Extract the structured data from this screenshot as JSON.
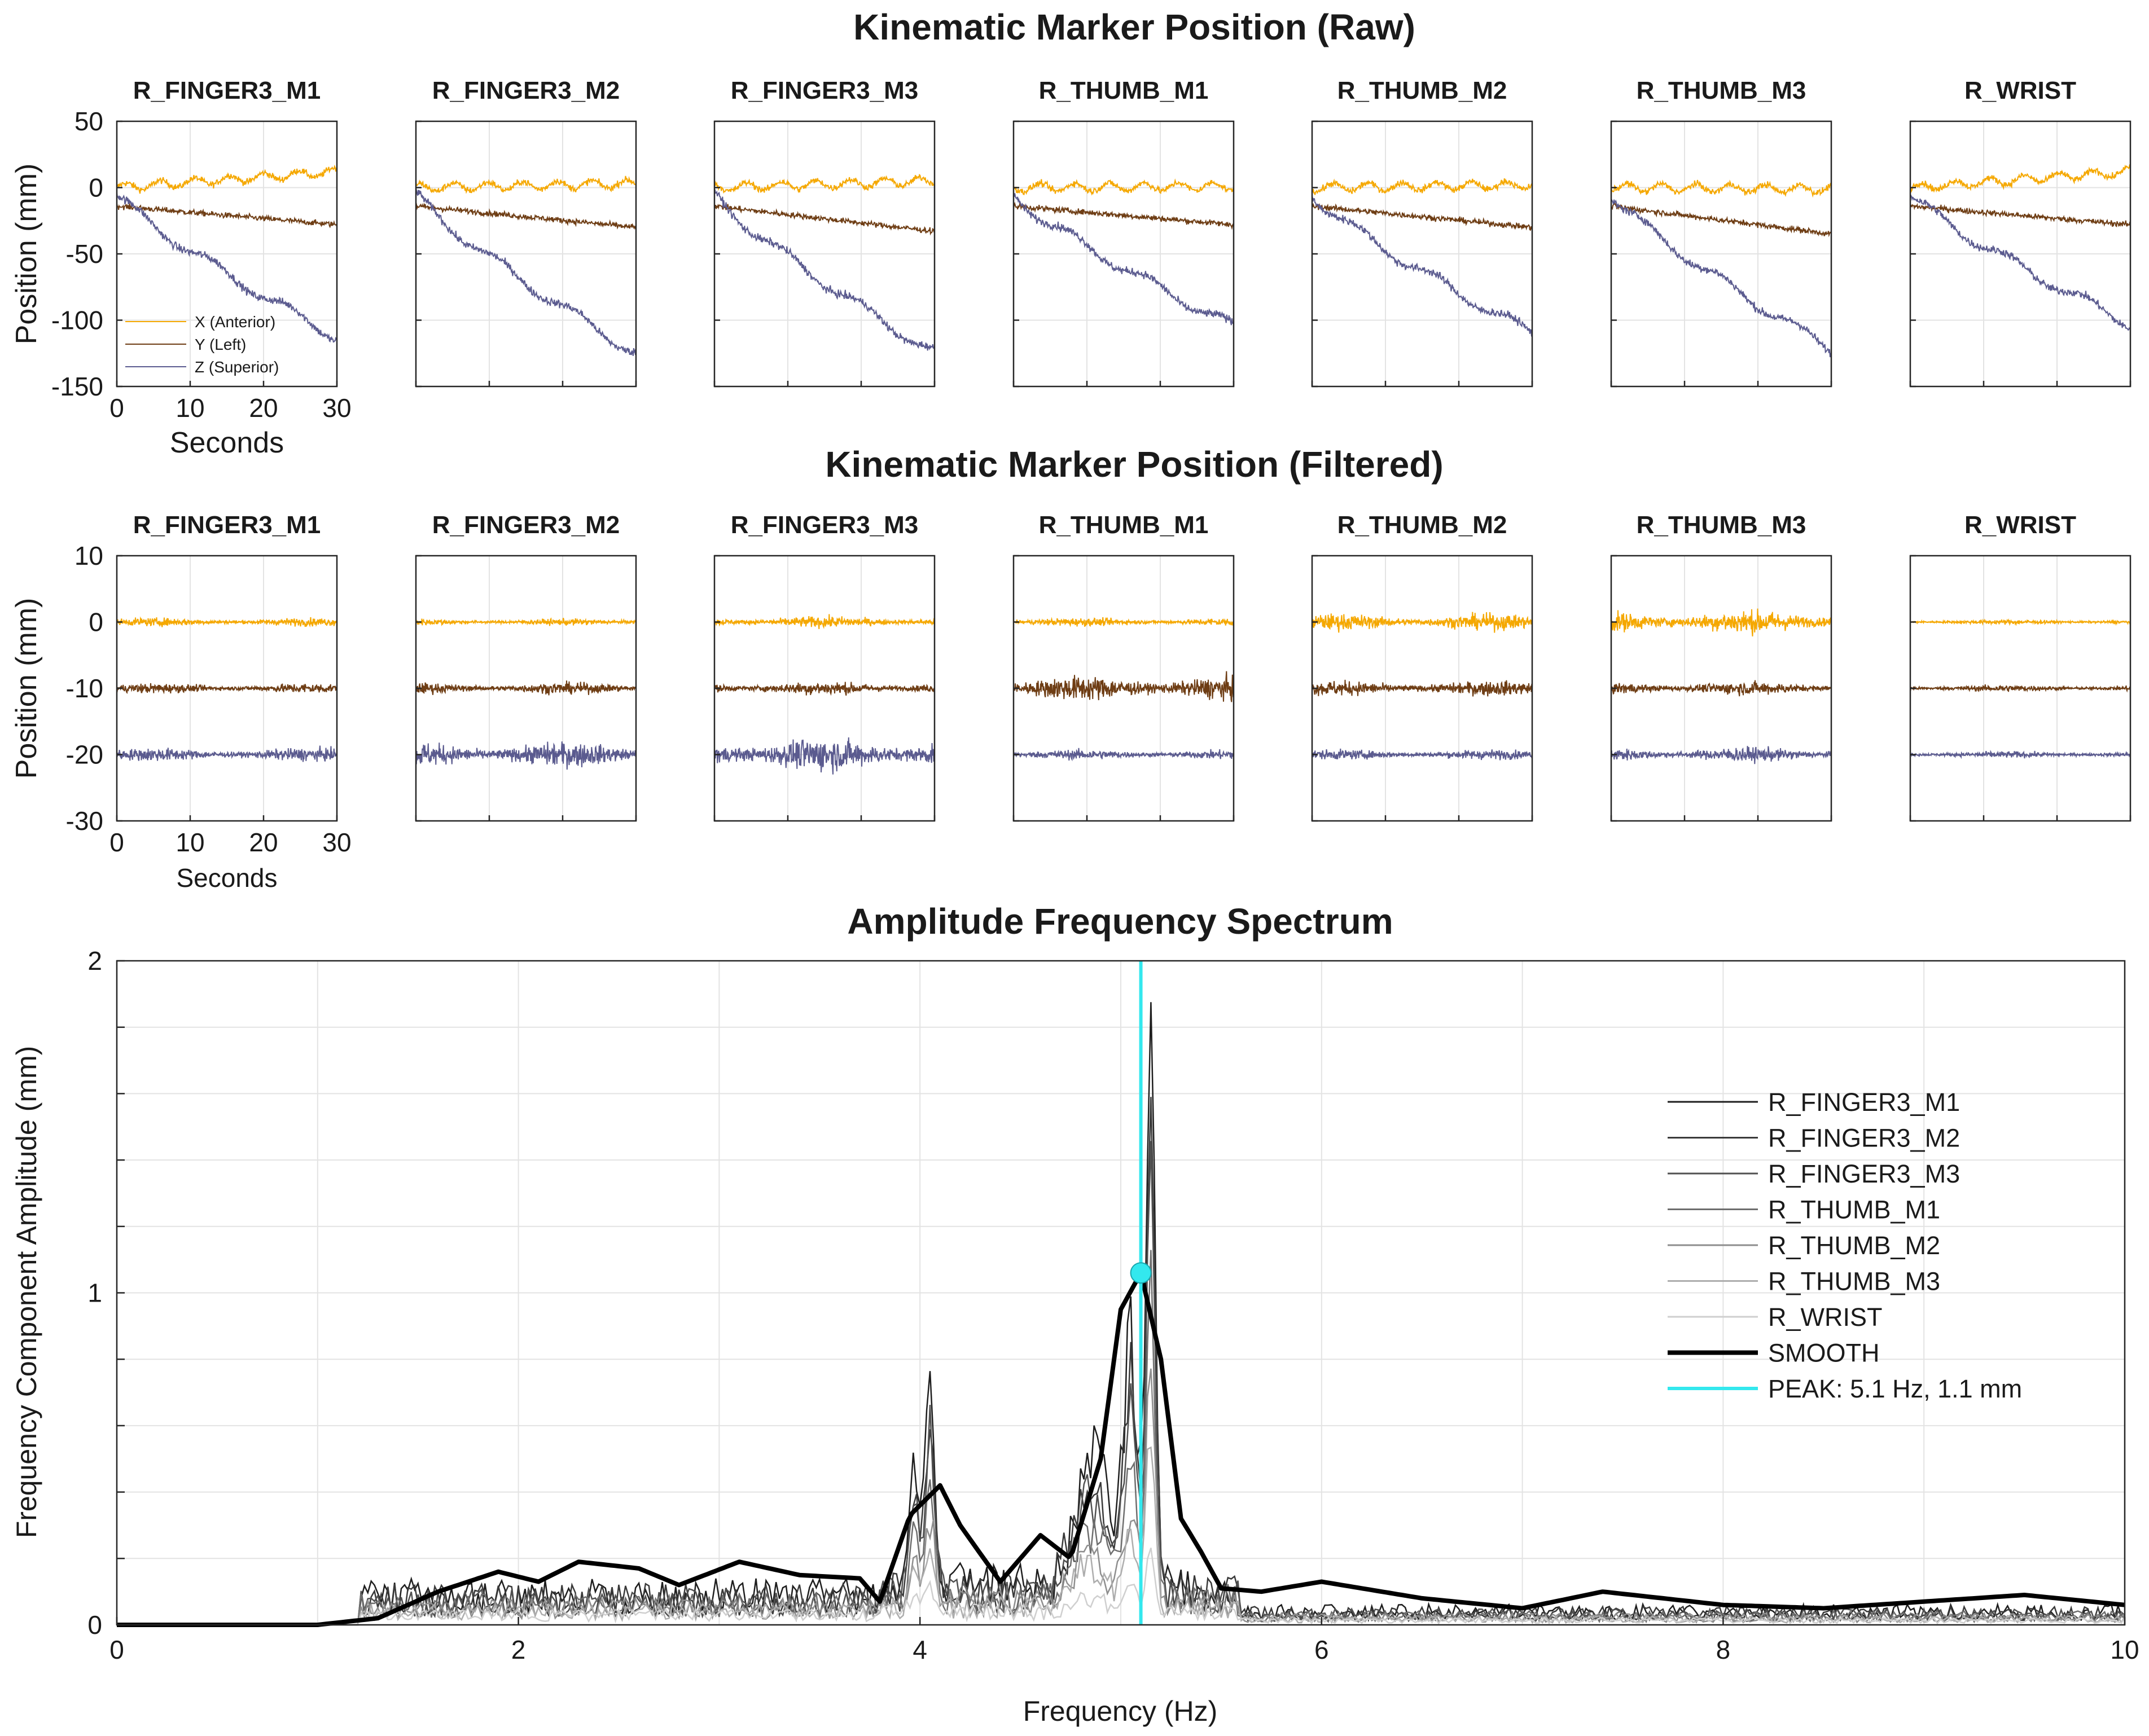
{
  "colors": {
    "x": "#f5a800",
    "y": "#6e3d14",
    "z": "#5b5b8f",
    "peak": "#33e8ee",
    "smooth": "#000000",
    "axis": "#262626",
    "grid": "#e3e3e3"
  },
  "markers": [
    "R_FINGER3_M1",
    "R_FINGER3_M2",
    "R_FINGER3_M3",
    "R_THUMB_M1",
    "R_THUMB_M2",
    "R_THUMB_M3",
    "R_WRIST"
  ],
  "raw": {
    "title": "Kinematic Marker Position (Raw)",
    "ylabel": "Position (mm)",
    "xlabel": "Seconds",
    "ylim": [
      -150,
      50
    ],
    "xlim": [
      0,
      30
    ],
    "yticks": [
      "50",
      "0",
      "-50",
      "-100",
      "-150"
    ],
    "xticks": [
      "0",
      "10",
      "20",
      "30"
    ],
    "legend": [
      "X (Anterior)",
      "Y (Left)",
      "Z (Superior)"
    ]
  },
  "filtered": {
    "title": "Kinematic Marker Position (Filtered)",
    "ylabel": "Position (mm)",
    "xlabel": "Seconds",
    "ylim": [
      -30,
      10
    ],
    "xlim": [
      0,
      30
    ],
    "yticks": [
      "10",
      "0",
      "-10",
      "-20",
      "-30"
    ],
    "xticks": [
      "0",
      "10",
      "20",
      "30"
    ]
  },
  "spectrum": {
    "title": "Amplitude Frequency Spectrum",
    "xlabel": "Frequency (Hz)",
    "ylabel": "Frequency Component Amplitude (mm)",
    "xlim": [
      0,
      10
    ],
    "ylim": [
      0,
      2
    ],
    "xticks": [
      "0",
      "2",
      "4",
      "6",
      "8",
      "10"
    ],
    "yticks": [
      "0",
      "1",
      "2"
    ],
    "legend": [
      "R_FINGER3_M1",
      "R_FINGER3_M2",
      "R_FINGER3_M3",
      "R_THUMB_M1",
      "R_THUMB_M2",
      "R_THUMB_M3",
      "R_WRIST",
      "SMOOTH",
      "PEAK: 5.1 Hz, 1.1 mm"
    ],
    "peak": {
      "freq": 5.1,
      "amp": 1.06
    }
  },
  "chart_data": [
    {
      "type": "line",
      "title": "Kinematic Marker Position (Raw)",
      "xlabel": "Seconds",
      "ylabel": "Position (mm)",
      "xlim": [
        0,
        30
      ],
      "ylim": [
        -150,
        50
      ],
      "series_names": [
        "X (Anterior)",
        "Y (Left)",
        "Z (Superior)"
      ],
      "panels": [
        {
          "name": "R_FINGER3_M1",
          "x_end": 12,
          "y_end": -28,
          "z_end": -113
        },
        {
          "name": "R_FINGER3_M2",
          "x_end": 3,
          "y_end": -30,
          "z_end": -125
        },
        {
          "name": "R_FINGER3_M3",
          "x_end": 5,
          "y_end": -33,
          "z_end": -125
        },
        {
          "name": "R_THUMB_M1",
          "x_end": 1,
          "y_end": -28,
          "z_end": -105
        },
        {
          "name": "R_THUMB_M2",
          "x_end": 2,
          "y_end": -30,
          "z_end": -110
        },
        {
          "name": "R_THUMB_M3",
          "x_end": -1,
          "y_end": -35,
          "z_end": -122
        },
        {
          "name": "R_WRIST",
          "x_end": 12,
          "y_end": -28,
          "z_end": -103
        }
      ]
    },
    {
      "type": "line",
      "title": "Kinematic Marker Position (Filtered)",
      "xlabel": "Seconds",
      "ylabel": "Position (mm)",
      "xlim": [
        0,
        30
      ],
      "ylim": [
        -30,
        10
      ],
      "offsets": {
        "x": 0,
        "y": -10,
        "z": -20
      },
      "panels": [
        {
          "name": "R_FINGER3_M1",
          "x_amp": 1.0,
          "y_amp": 1.2,
          "z_amp": 1.6
        },
        {
          "name": "R_FINGER3_M2",
          "x_amp": 0.8,
          "y_amp": 1.4,
          "z_amp": 3.0
        },
        {
          "name": "R_FINGER3_M3",
          "x_amp": 1.4,
          "y_amp": 1.6,
          "z_amp": 4.0
        },
        {
          "name": "R_THUMB_M1",
          "x_amp": 1.0,
          "y_amp": 3.0,
          "z_amp": 1.2
        },
        {
          "name": "R_THUMB_M2",
          "x_amp": 2.0,
          "y_amp": 1.8,
          "z_amp": 1.2
        },
        {
          "name": "R_THUMB_M3",
          "x_amp": 2.8,
          "y_amp": 1.6,
          "z_amp": 1.8
        },
        {
          "name": "R_WRIST",
          "x_amp": 0.6,
          "y_amp": 0.8,
          "z_amp": 0.8
        }
      ]
    },
    {
      "type": "line",
      "title": "Amplitude Frequency Spectrum",
      "xlabel": "Frequency (Hz)",
      "ylabel": "Frequency Component Amplitude (mm)",
      "xlim": [
        0,
        10
      ],
      "ylim": [
        0,
        2
      ],
      "smooth": {
        "x": [
          0,
          1.0,
          1.3,
          1.6,
          1.9,
          2.1,
          2.3,
          2.6,
          2.8,
          3.1,
          3.4,
          3.7,
          3.8,
          3.95,
          4.1,
          4.2,
          4.4,
          4.6,
          4.75,
          4.9,
          5.0,
          5.1,
          5.2,
          5.3,
          5.4,
          5.5,
          5.7,
          6.0,
          6.5,
          7.0,
          7.4,
          8.0,
          8.5,
          9.0,
          9.5,
          10.0
        ],
        "y": [
          0.0,
          0.0,
          0.02,
          0.1,
          0.16,
          0.13,
          0.19,
          0.17,
          0.12,
          0.19,
          0.15,
          0.14,
          0.07,
          0.33,
          0.42,
          0.3,
          0.13,
          0.27,
          0.2,
          0.5,
          0.95,
          1.06,
          0.8,
          0.32,
          0.22,
          0.11,
          0.1,
          0.13,
          0.08,
          0.05,
          0.1,
          0.06,
          0.05,
          0.07,
          0.09,
          0.06
        ]
      },
      "peak": {
        "freq": 5.1,
        "amp": 1.06,
        "label": "PEAK: 5.1 Hz, 1.1 mm"
      },
      "marker_peaks": [
        {
          "name": "R_FINGER3_M1",
          "peak_4hz": 0.78,
          "peak_5hz": 1.95
        },
        {
          "name": "R_FINGER3_M2",
          "peak_4hz": 0.62,
          "peak_5hz": 1.7
        },
        {
          "name": "R_FINGER3_M3",
          "peak_4hz": 0.55,
          "peak_5hz": 1.4
        },
        {
          "name": "R_THUMB_M1",
          "peak_4hz": 0.4,
          "peak_5hz": 1.1
        },
        {
          "name": "R_THUMB_M2",
          "peak_4hz": 0.3,
          "peak_5hz": 0.8
        },
        {
          "name": "R_THUMB_M3",
          "peak_4hz": 0.25,
          "peak_5hz": 0.6
        },
        {
          "name": "R_WRIST",
          "peak_4hz": 0.1,
          "peak_5hz": 0.2
        }
      ]
    }
  ]
}
